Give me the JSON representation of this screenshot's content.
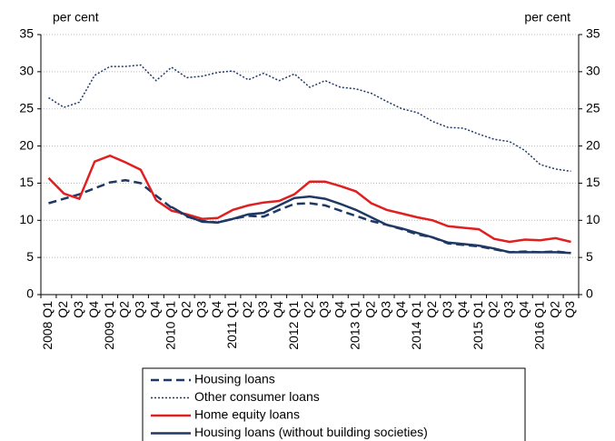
{
  "chart_data": {
    "type": "line",
    "y_label": "per cent",
    "y2_label": "per cent",
    "categories": [
      "2008 Q1",
      "Q2",
      "Q3",
      "Q4",
      "2009 Q1",
      "Q2",
      "Q3",
      "Q4",
      "2010 Q1",
      "Q2",
      "Q3",
      "Q4",
      "2011 Q1",
      "Q2",
      "Q3",
      "Q4",
      "2012 Q1",
      "Q2",
      "Q3",
      "Q4",
      "2013 Q1",
      "Q2",
      "Q3",
      "Q4",
      "2014 Q1",
      "Q2",
      "Q3",
      "Q4",
      "2015 Q1",
      "Q2",
      "Q3",
      "Q4",
      "2016 Q1",
      "Q2",
      "Q3"
    ],
    "series": [
      {
        "name": "Housing loans",
        "color": "#1f3864",
        "line_style": "dashed",
        "values": [
          12.3,
          12.9,
          13.5,
          14.3,
          15.1,
          15.4,
          15.0,
          13.3,
          11.7,
          10.5,
          9.9,
          9.7,
          10.2,
          10.6,
          10.5,
          11.4,
          12.2,
          12.3,
          12.0,
          11.3,
          10.6,
          9.9,
          9.4,
          8.8,
          8.1,
          7.7,
          6.9,
          6.7,
          6.5,
          6.1,
          5.7,
          5.8,
          5.7,
          5.8,
          5.6
        ]
      },
      {
        "name": "Other consumer loans",
        "color": "#1f3864",
        "line_style": "dotted",
        "values": [
          26.5,
          25.2,
          25.9,
          29.5,
          30.7,
          30.7,
          30.9,
          28.8,
          30.6,
          29.2,
          29.4,
          29.9,
          30.1,
          28.9,
          29.8,
          28.8,
          29.7,
          27.9,
          28.8,
          27.9,
          27.7,
          27.1,
          26.0,
          25.0,
          24.5,
          23.3,
          22.5,
          22.4,
          21.6,
          20.9,
          20.6,
          19.4,
          17.5,
          16.9,
          16.6
        ]
      },
      {
        "name": "Home equity loans",
        "color": "#e02020",
        "line_style": "solid",
        "values": [
          15.7,
          13.6,
          12.9,
          17.9,
          18.7,
          17.8,
          16.8,
          12.7,
          11.3,
          10.8,
          10.2,
          10.3,
          11.4,
          12.0,
          12.4,
          12.6,
          13.5,
          15.2,
          15.2,
          14.6,
          13.9,
          12.3,
          11.4,
          10.9,
          10.4,
          10.0,
          9.2,
          9.0,
          8.8,
          7.5,
          7.1,
          7.4,
          7.3,
          7.6,
          7.1
        ]
      },
      {
        "name": "Housing loans (without building societies)",
        "color": "#1f3864",
        "line_style": "solid",
        "values": [
          null,
          null,
          null,
          null,
          null,
          null,
          null,
          null,
          11.8,
          10.6,
          9.8,
          9.7,
          10.2,
          10.8,
          11.0,
          12.0,
          13.0,
          13.2,
          12.9,
          12.2,
          11.4,
          10.4,
          9.4,
          8.9,
          8.3,
          7.7,
          7.0,
          6.8,
          6.6,
          6.2,
          5.7,
          5.7,
          5.7,
          5.7,
          5.6
        ]
      }
    ],
    "ylim": [
      0,
      35
    ],
    "yticks": [
      0,
      5,
      10,
      15,
      20,
      25,
      30,
      35
    ],
    "y2lim": [
      0,
      35
    ],
    "y2ticks": [
      0,
      5,
      10,
      15,
      20,
      25,
      30,
      35
    ],
    "grid": true
  }
}
